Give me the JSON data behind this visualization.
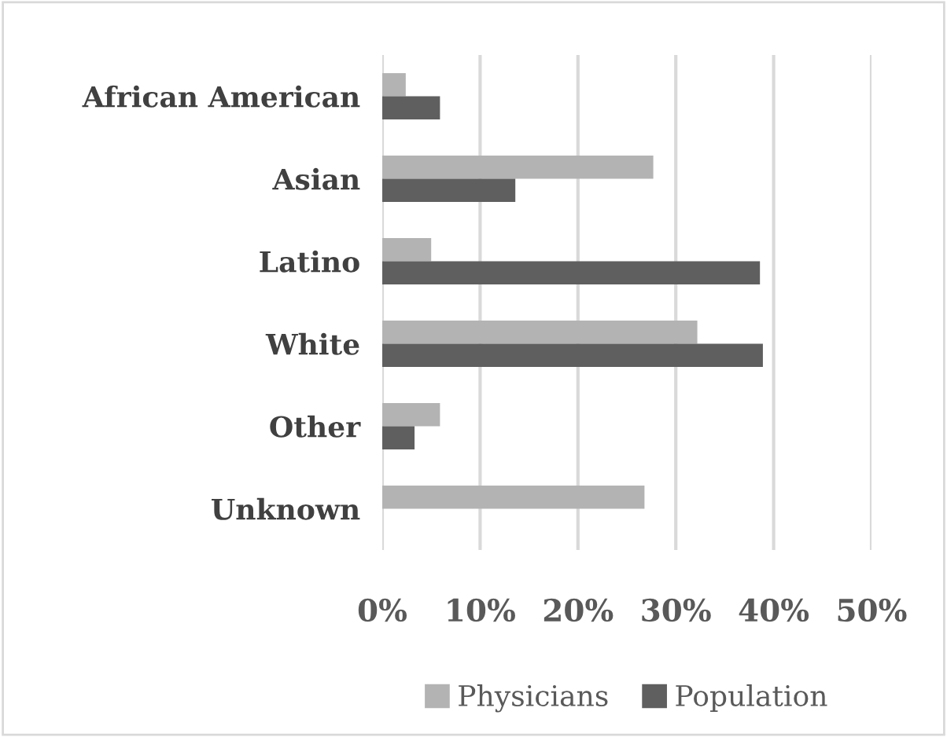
{
  "chart_data": {
    "type": "bar",
    "orientation": "horizontal",
    "categories": [
      "African American",
      "Asian",
      "Latino",
      "White",
      "Other",
      "Unknown"
    ],
    "series": [
      {
        "name": "Physicians",
        "color": "#b3b3b3",
        "values": [
          2.4,
          27.7,
          5.0,
          32.2,
          5.9,
          26.8
        ]
      },
      {
        "name": "Population",
        "color": "#5f5f5f",
        "values": [
          5.9,
          13.6,
          38.6,
          38.9,
          3.3,
          null
        ]
      }
    ],
    "xlim": [
      0,
      50
    ],
    "xticks": [
      {
        "value": 0,
        "label": "0%"
      },
      {
        "value": 10,
        "label": "10%"
      },
      {
        "value": 20,
        "label": "20%"
      },
      {
        "value": 30,
        "label": "30%"
      },
      {
        "value": 40,
        "label": "40%"
      },
      {
        "value": 50,
        "label": "50%"
      }
    ],
    "grid": "x",
    "legend": "bottom"
  }
}
